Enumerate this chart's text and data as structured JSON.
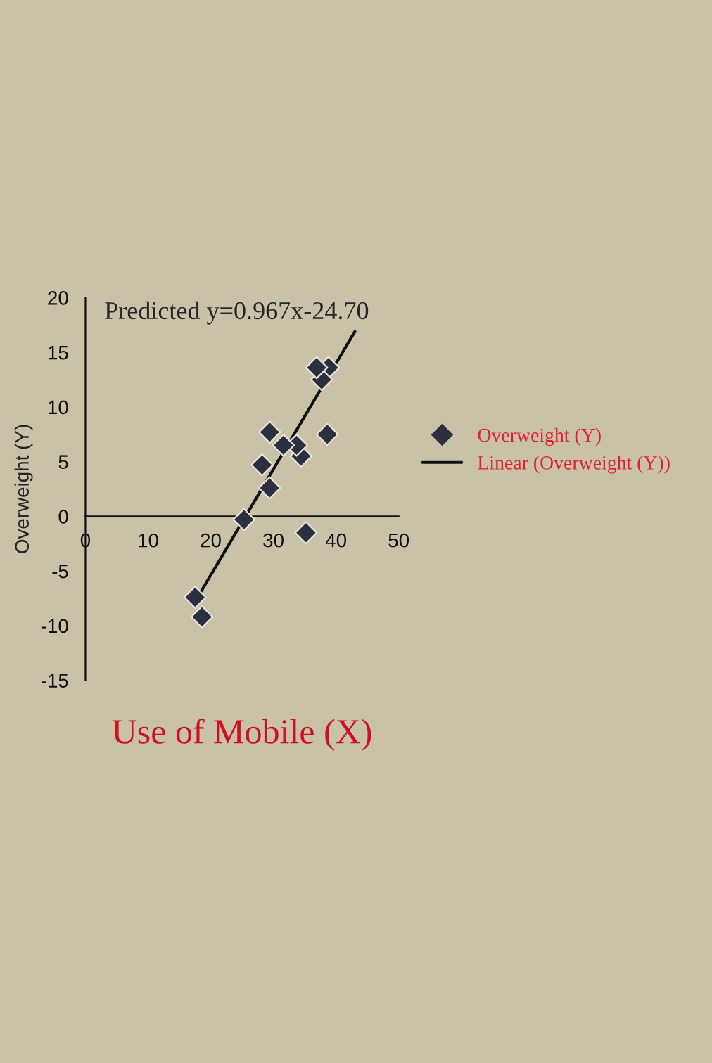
{
  "chart_data": {
    "type": "scatter",
    "xlabel": "Use of Mobile (X)",
    "ylabel": "Overweight (Y)",
    "series": [
      {
        "name": "Overweight (Y)",
        "color": "#2b3040",
        "marker": "diamond",
        "x": [
          38.8,
          37.7,
          36.9,
          38.6,
          34.4,
          33.7,
          31.6,
          29.4,
          28.2,
          29.4,
          25.3,
          35.2,
          17.5,
          18.6
        ],
        "values": [
          13.6,
          12.5,
          13.6,
          7.5,
          5.5,
          6.5,
          6.5,
          7.7,
          4.7,
          2.6,
          -0.3,
          -1.5,
          -7.4,
          -9.2
        ]
      },
      {
        "name": "Linear (Overweight (Y))",
        "type": "line",
        "color": "#111111",
        "line_style": "solid",
        "x": [
          17.5,
          43
        ],
        "values": [
          -7.8,
          16.9
        ]
      }
    ],
    "xlim": [
      0,
      50
    ],
    "xticks": [
      0,
      10,
      20,
      30,
      40,
      50
    ],
    "ylim": [
      -15,
      20
    ],
    "yticks": [
      -15,
      -10,
      -5,
      0,
      5,
      10,
      15,
      20
    ],
    "grid": false,
    "legend": "right",
    "annotations": [
      "Predicted y=0.967x-24.70"
    ]
  }
}
